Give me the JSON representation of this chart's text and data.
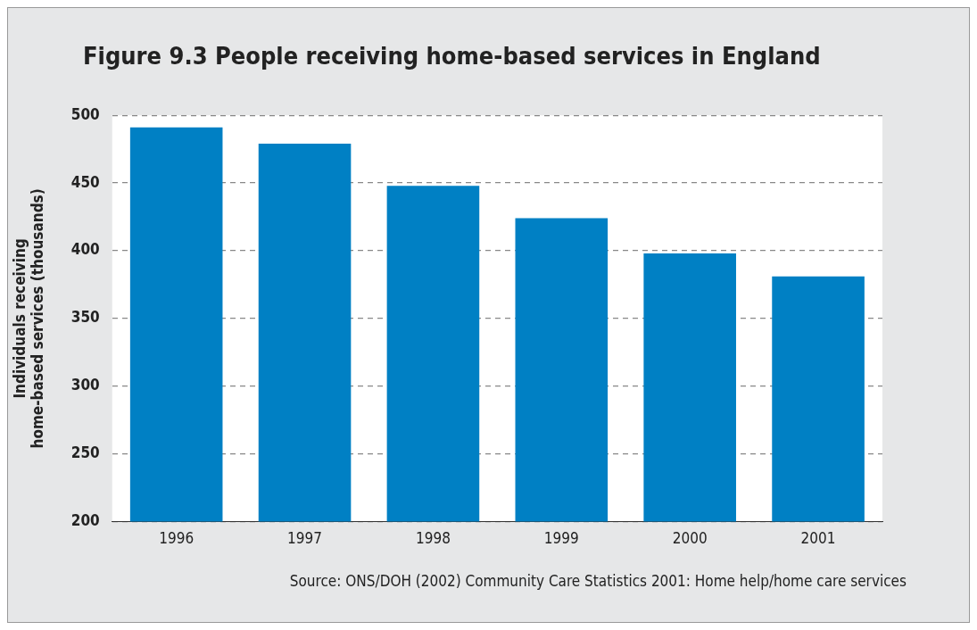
{
  "chart_data": {
    "type": "bar",
    "title": "Figure 9.3 People receiving home-based services in England",
    "ylabel": "Individuals receiving home-based services (thousands)",
    "categories": [
      "1996",
      "1997",
      "1998",
      "1999",
      "2000",
      "2001"
    ],
    "values": [
      491,
      479,
      448,
      424,
      398,
      381
    ],
    "color": "#0080c4",
    "ylim": [
      200,
      500
    ],
    "yticks": [
      200,
      250,
      300,
      350,
      400,
      450,
      500
    ],
    "grid": "y",
    "legend": false,
    "annotations": [
      "Source:  ONS/DOH (2002) Community Care Statistics 2001: Home help/home care services"
    ]
  }
}
